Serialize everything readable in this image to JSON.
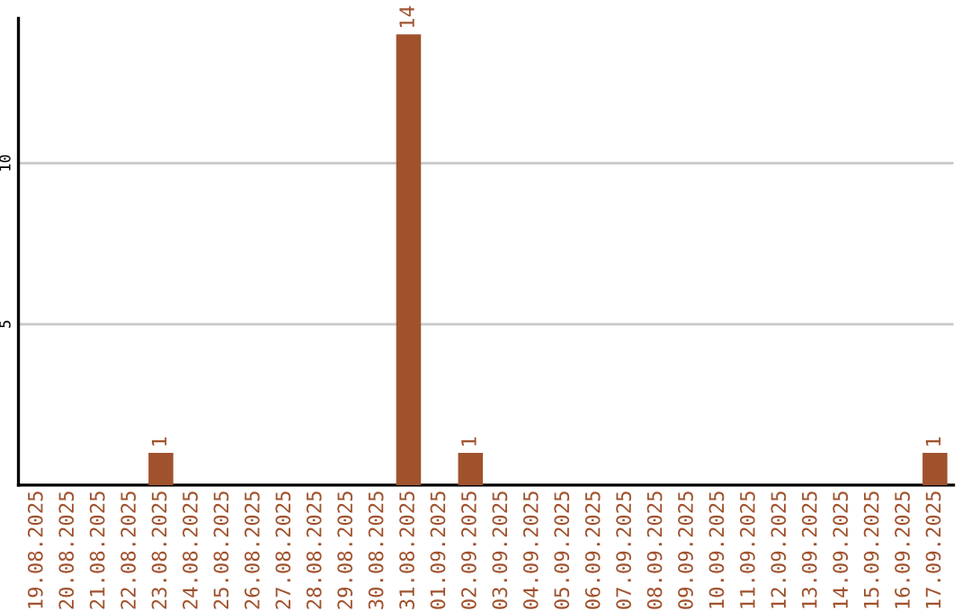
{
  "chart_data": {
    "type": "bar",
    "categories": [
      "19.08.2025",
      "20.08.2025",
      "21.08.2025",
      "22.08.2025",
      "23.08.2025",
      "24.08.2025",
      "25.08.2025",
      "26.08.2025",
      "27.08.2025",
      "28.08.2025",
      "29.08.2025",
      "30.08.2025",
      "31.08.2025",
      "01.09.2025",
      "02.09.2025",
      "03.09.2025",
      "04.09.2025",
      "05.09.2025",
      "06.09.2025",
      "07.09.2025",
      "08.09.2025",
      "09.09.2025",
      "10.09.2025",
      "11.09.2025",
      "12.09.2025",
      "13.09.2025",
      "14.09.2025",
      "15.09.2025",
      "16.09.2025",
      "17.09.2025"
    ],
    "values": [
      0,
      0,
      0,
      0,
      1,
      0,
      0,
      0,
      0,
      0,
      0,
      0,
      14,
      0,
      1,
      0,
      0,
      0,
      0,
      0,
      0,
      0,
      0,
      0,
      0,
      0,
      0,
      0,
      0,
      1
    ],
    "value_labels": [
      null,
      null,
      null,
      null,
      "1",
      null,
      null,
      null,
      null,
      null,
      null,
      null,
      "14",
      null,
      "1",
      null,
      null,
      null,
      null,
      null,
      null,
      null,
      null,
      null,
      null,
      null,
      null,
      null,
      null,
      "1"
    ],
    "color": "#a0522d",
    "ylim": [
      0,
      14.5
    ],
    "yticks": [
      5,
      10
    ],
    "grid": "y",
    "legend": false
  }
}
